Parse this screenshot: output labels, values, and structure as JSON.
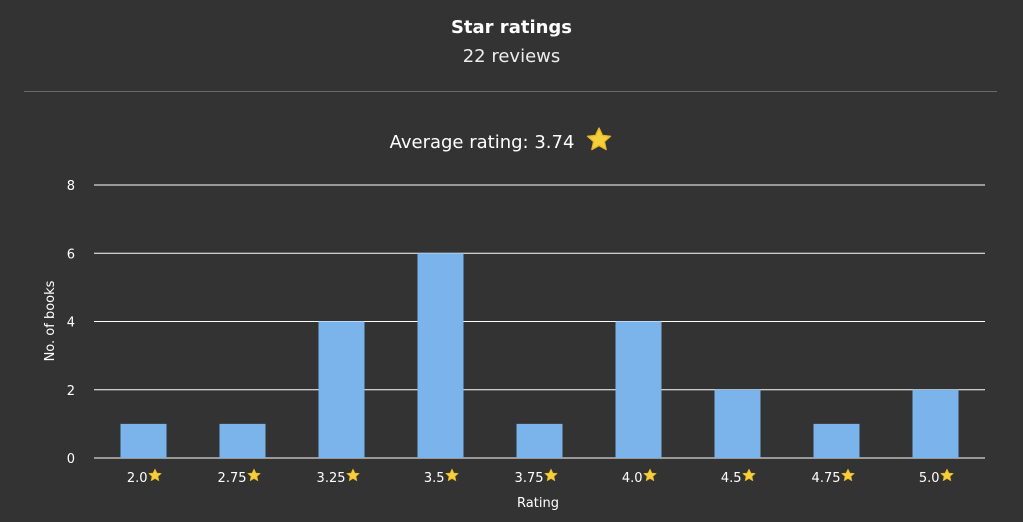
{
  "header": {
    "title": "Star ratings",
    "subtitle": "22 reviews"
  },
  "colors": {
    "background": "#333333",
    "bar": "#7ab4ea",
    "grid": "#ffffff",
    "divider": "#6a6a6a",
    "star": "#f6cf3c"
  },
  "chart_data": {
    "type": "bar",
    "title": "Average rating: 3.74",
    "title_icon": "star-icon",
    "categories": [
      "2.0",
      "2.75",
      "3.25",
      "3.5",
      "3.75",
      "4.0",
      "4.5",
      "4.75",
      "5.0"
    ],
    "category_icon": "star-icon",
    "values": [
      1,
      1,
      4,
      6,
      1,
      4,
      2,
      1,
      2
    ],
    "xlabel": "Rating",
    "ylabel": "No. of books",
    "ylim": [
      0,
      8
    ],
    "yticks": [
      "0",
      "2",
      "4",
      "6",
      "8"
    ],
    "grid": true
  }
}
